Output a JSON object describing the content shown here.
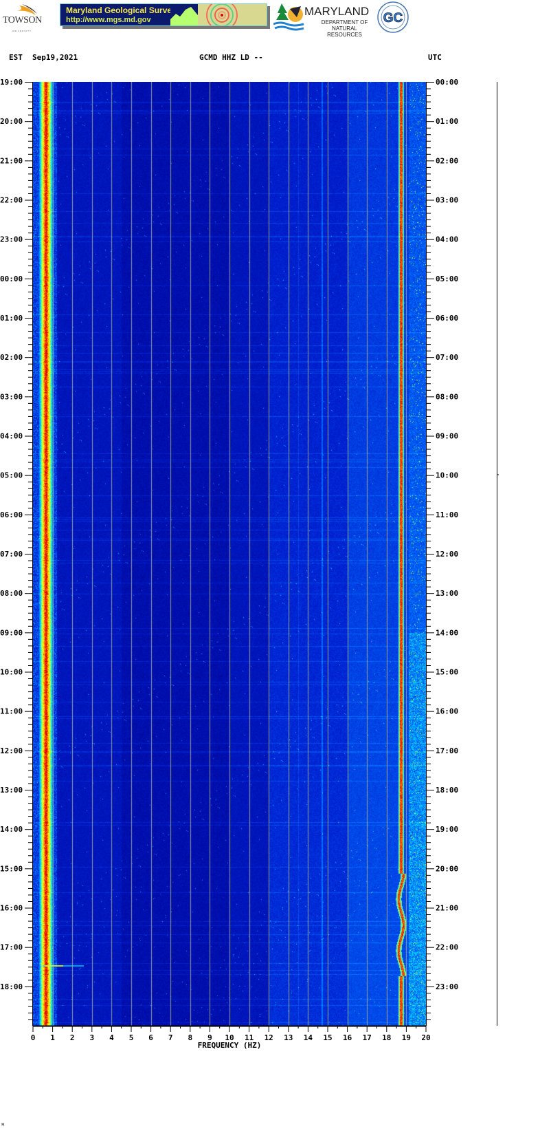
{
  "header": {
    "logos": {
      "towson": {
        "name": "TOWSON",
        "sub": "UNIVERSITY"
      },
      "mgs": {
        "title": "Maryland Geological Survey",
        "url": "http://www.mgs.md.gov"
      },
      "dnr": {
        "name": "MARYLAND",
        "sub1": "DEPARTMENT OF",
        "sub2": "NATURAL RESOURCES"
      },
      "gc": {
        "text": "GC"
      }
    },
    "left_tz": "EST",
    "date": "Sep19,2021",
    "station": "GCMD HHZ LD --",
    "right_tz": "UTC"
  },
  "footer_mark": "ᴍ",
  "chart_data": {
    "type": "heatmap",
    "title": "GCMD HHZ LD --",
    "xlabel": "FREQUENCY (HZ)",
    "xlim": [
      0,
      20
    ],
    "x_ticks": [
      "0",
      "1",
      "2",
      "3",
      "4",
      "5",
      "6",
      "7",
      "8",
      "9",
      "10",
      "11",
      "12",
      "13",
      "14",
      "15",
      "16",
      "17",
      "18",
      "19",
      "20"
    ],
    "y_left_label": "EST",
    "y_right_label": "UTC",
    "y_left_ticks": [
      "19:00",
      "20:00",
      "21:00",
      "22:00",
      "23:00",
      "00:00",
      "01:00",
      "02:00",
      "03:00",
      "04:00",
      "05:00",
      "06:00",
      "07:00",
      "08:00",
      "09:00",
      "10:00",
      "11:00",
      "12:00",
      "13:00",
      "14:00",
      "15:00",
      "16:00",
      "17:00",
      "18:00"
    ],
    "y_right_ticks": [
      "00:00",
      "01:00",
      "02:00",
      "03:00",
      "04:00",
      "05:00",
      "06:00",
      "07:00",
      "08:00",
      "09:00",
      "10:00",
      "11:00",
      "12:00",
      "13:00",
      "14:00",
      "15:00",
      "16:00",
      "17:00",
      "18:00",
      "19:00",
      "20:00",
      "21:00",
      "22:00",
      "23:00"
    ],
    "minor_tick_minutes": 10,
    "grid": true,
    "grid_every_hz": 1,
    "colormap": [
      "#00008c",
      "#0020d0",
      "#0070ff",
      "#00e0ff",
      "#a0ff60",
      "#ffff00",
      "#ff8000",
      "#e00000"
    ],
    "background_color": "#0000a0"
  }
}
